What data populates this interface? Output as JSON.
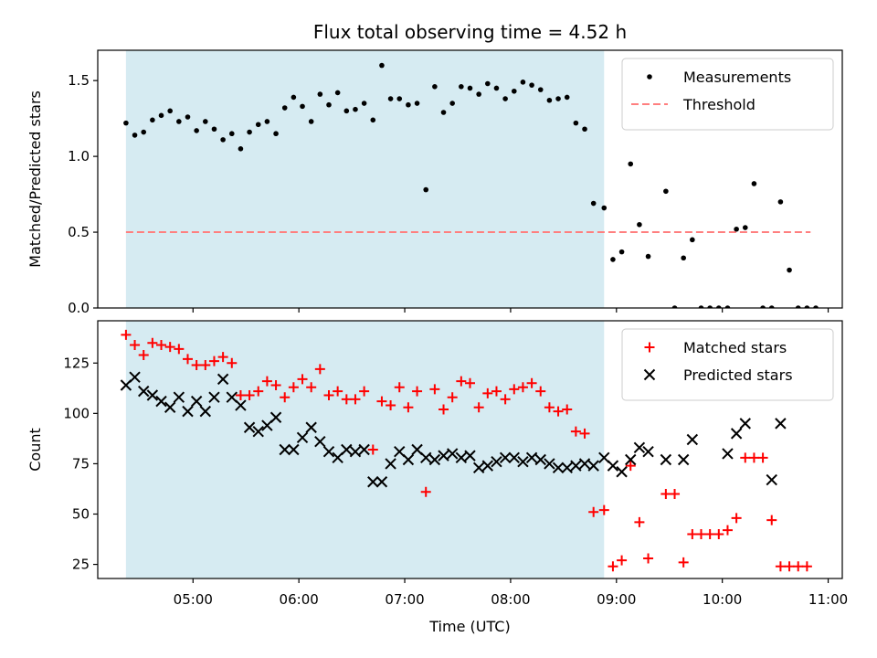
{
  "chart_data": {
    "title": "Flux total observing time = 4.52 h",
    "colors": {
      "measurement": "#000000",
      "threshold": "#ff7f7f",
      "matched": "#ff0000",
      "predicted": "#000000",
      "shade": "#add8e6"
    },
    "shade_span": [
      "04:22",
      "08:53"
    ],
    "x": {
      "label": "Time (UTC)",
      "lim": [
        "04:06",
        "11:08"
      ],
      "ticks": [
        "05:00",
        "06:00",
        "07:00",
        "08:00",
        "09:00",
        "10:00",
        "11:00"
      ]
    },
    "panels": [
      {
        "type": "scatter",
        "ylabel": "Matched/Predicted stars",
        "ylim": [
          0,
          1.7
        ],
        "yticks": [
          "0.0",
          "0.5",
          "1.0",
          "1.5"
        ],
        "legend": {
          "position": "top-right",
          "entries": [
            "Measurements",
            "Threshold"
          ]
        },
        "threshold": {
          "name": "Threshold",
          "value": 0.5,
          "x_range": [
            "04:22",
            "10:50"
          ]
        },
        "series": [
          {
            "name": "Measurements",
            "marker": "dot",
            "points": [
              [
                "04:22",
                1.22
              ],
              [
                "04:27",
                1.14
              ],
              [
                "04:32",
                1.16
              ],
              [
                "04:37",
                1.24
              ],
              [
                "04:42",
                1.27
              ],
              [
                "04:47",
                1.3
              ],
              [
                "04:52",
                1.23
              ],
              [
                "04:57",
                1.26
              ],
              [
                "05:02",
                1.17
              ],
              [
                "05:07",
                1.23
              ],
              [
                "05:12",
                1.18
              ],
              [
                "05:17",
                1.11
              ],
              [
                "05:22",
                1.15
              ],
              [
                "05:27",
                1.05
              ],
              [
                "05:32",
                1.16
              ],
              [
                "05:37",
                1.21
              ],
              [
                "05:42",
                1.23
              ],
              [
                "05:47",
                1.15
              ],
              [
                "05:52",
                1.32
              ],
              [
                "05:57",
                1.39
              ],
              [
                "06:02",
                1.33
              ],
              [
                "06:07",
                1.23
              ],
              [
                "06:12",
                1.41
              ],
              [
                "06:17",
                1.34
              ],
              [
                "06:22",
                1.42
              ],
              [
                "06:27",
                1.3
              ],
              [
                "06:32",
                1.31
              ],
              [
                "06:37",
                1.35
              ],
              [
                "06:42",
                1.24
              ],
              [
                "06:47",
                1.6
              ],
              [
                "06:52",
                1.38
              ],
              [
                "06:57",
                1.38
              ],
              [
                "07:02",
                1.34
              ],
              [
                "07:07",
                1.35
              ],
              [
                "07:12",
                0.78
              ],
              [
                "07:17",
                1.46
              ],
              [
                "07:22",
                1.29
              ],
              [
                "07:27",
                1.35
              ],
              [
                "07:32",
                1.46
              ],
              [
                "07:37",
                1.45
              ],
              [
                "07:42",
                1.41
              ],
              [
                "07:47",
                1.48
              ],
              [
                "07:52",
                1.45
              ],
              [
                "07:57",
                1.38
              ],
              [
                "08:02",
                1.43
              ],
              [
                "08:07",
                1.49
              ],
              [
                "08:12",
                1.47
              ],
              [
                "08:17",
                1.44
              ],
              [
                "08:22",
                1.37
              ],
              [
                "08:27",
                1.38
              ],
              [
                "08:32",
                1.39
              ],
              [
                "08:37",
                1.22
              ],
              [
                "08:42",
                1.18
              ],
              [
                "08:47",
                0.69
              ],
              [
                "08:53",
                0.66
              ],
              [
                "08:58",
                0.32
              ],
              [
                "09:03",
                0.37
              ],
              [
                "09:08",
                0.95
              ],
              [
                "09:13",
                0.55
              ],
              [
                "09:18",
                0.34
              ],
              [
                "09:28",
                0.77
              ],
              [
                "09:33",
                0.0
              ],
              [
                "09:38",
                0.33
              ],
              [
                "09:43",
                0.45
              ],
              [
                "09:48",
                0.0
              ],
              [
                "09:53",
                0.0
              ],
              [
                "09:58",
                0.0
              ],
              [
                "10:03",
                0.0
              ],
              [
                "10:08",
                0.52
              ],
              [
                "10:13",
                0.53
              ],
              [
                "10:18",
                0.82
              ],
              [
                "10:23",
                0.0
              ],
              [
                "10:28",
                0.0
              ],
              [
                "10:33",
                0.7
              ],
              [
                "10:38",
                0.25
              ],
              [
                "10:43",
                0.0
              ],
              [
                "10:48",
                0.0
              ],
              [
                "10:53",
                0.0
              ]
            ]
          }
        ]
      },
      {
        "type": "scatter",
        "ylabel": "Count",
        "ylim": [
          18,
          146
        ],
        "yticks": [
          "25",
          "50",
          "75",
          "100",
          "125"
        ],
        "legend": {
          "position": "top-right",
          "entries": [
            "Matched stars",
            "Predicted stars"
          ]
        },
        "series": [
          {
            "name": "Matched stars",
            "marker": "plus",
            "points": [
              [
                "04:22",
                139
              ],
              [
                "04:27",
                134
              ],
              [
                "04:32",
                129
              ],
              [
                "04:37",
                135
              ],
              [
                "04:42",
                134
              ],
              [
                "04:47",
                133
              ],
              [
                "04:52",
                132
              ],
              [
                "04:57",
                127
              ],
              [
                "05:02",
                124
              ],
              [
                "05:07",
                124
              ],
              [
                "05:12",
                126
              ],
              [
                "05:17",
                128
              ],
              [
                "05:22",
                125
              ],
              [
                "05:27",
                109
              ],
              [
                "05:32",
                109
              ],
              [
                "05:37",
                111
              ],
              [
                "05:42",
                116
              ],
              [
                "05:47",
                114
              ],
              [
                "05:52",
                108
              ],
              [
                "05:57",
                113
              ],
              [
                "06:02",
                117
              ],
              [
                "06:07",
                113
              ],
              [
                "06:12",
                122
              ],
              [
                "06:17",
                109
              ],
              [
                "06:22",
                111
              ],
              [
                "06:27",
                107
              ],
              [
                "06:32",
                107
              ],
              [
                "06:37",
                111
              ],
              [
                "06:42",
                82
              ],
              [
                "06:47",
                106
              ],
              [
                "06:52",
                104
              ],
              [
                "06:57",
                113
              ],
              [
                "07:02",
                103
              ],
              [
                "07:07",
                111
              ],
              [
                "07:12",
                61
              ],
              [
                "07:17",
                112
              ],
              [
                "07:22",
                102
              ],
              [
                "07:27",
                108
              ],
              [
                "07:32",
                116
              ],
              [
                "07:37",
                115
              ],
              [
                "07:42",
                103
              ],
              [
                "07:47",
                110
              ],
              [
                "07:52",
                111
              ],
              [
                "07:57",
                107
              ],
              [
                "08:02",
                112
              ],
              [
                "08:07",
                113
              ],
              [
                "08:12",
                115
              ],
              [
                "08:17",
                111
              ],
              [
                "08:22",
                103
              ],
              [
                "08:27",
                101
              ],
              [
                "08:32",
                102
              ],
              [
                "08:37",
                91
              ],
              [
                "08:42",
                90
              ],
              [
                "08:47",
                51
              ],
              [
                "08:53",
                52
              ],
              [
                "08:58",
                24
              ],
              [
                "09:03",
                27
              ],
              [
                "09:08",
                74
              ],
              [
                "09:13",
                46
              ],
              [
                "09:18",
                28
              ],
              [
                "09:28",
                60
              ],
              [
                "09:33",
                60
              ],
              [
                "09:38",
                26
              ],
              [
                "09:43",
                40
              ],
              [
                "09:48",
                40
              ],
              [
                "09:53",
                40
              ],
              [
                "09:58",
                40
              ],
              [
                "10:03",
                42
              ],
              [
                "10:08",
                48
              ],
              [
                "10:13",
                78
              ],
              [
                "10:18",
                78
              ],
              [
                "10:23",
                78
              ],
              [
                "10:28",
                47
              ],
              [
                "10:33",
                24
              ],
              [
                "10:38",
                24
              ],
              [
                "10:43",
                24
              ],
              [
                "10:48",
                24
              ]
            ]
          },
          {
            "name": "Predicted stars",
            "marker": "x",
            "points": [
              [
                "04:22",
                114
              ],
              [
                "04:27",
                118
              ],
              [
                "04:32",
                111
              ],
              [
                "04:37",
                109
              ],
              [
                "04:42",
                106
              ],
              [
                "04:47",
                103
              ],
              [
                "04:52",
                108
              ],
              [
                "04:57",
                101
              ],
              [
                "05:02",
                106
              ],
              [
                "05:07",
                101
              ],
              [
                "05:12",
                108
              ],
              [
                "05:17",
                117
              ],
              [
                "05:22",
                108
              ],
              [
                "05:27",
                104
              ],
              [
                "05:32",
                93
              ],
              [
                "05:37",
                91
              ],
              [
                "05:42",
                94
              ],
              [
                "05:47",
                98
              ],
              [
                "05:52",
                82
              ],
              [
                "05:57",
                82
              ],
              [
                "06:02",
                88
              ],
              [
                "06:07",
                93
              ],
              [
                "06:12",
                86
              ],
              [
                "06:17",
                81
              ],
              [
                "06:22",
                78
              ],
              [
                "06:27",
                82
              ],
              [
                "06:32",
                81
              ],
              [
                "06:37",
                82
              ],
              [
                "06:42",
                66
              ],
              [
                "06:47",
                66
              ],
              [
                "06:52",
                75
              ],
              [
                "06:57",
                81
              ],
              [
                "07:02",
                77
              ],
              [
                "07:07",
                82
              ],
              [
                "07:12",
                78
              ],
              [
                "07:17",
                77
              ],
              [
                "07:22",
                79
              ],
              [
                "07:27",
                80
              ],
              [
                "07:32",
                78
              ],
              [
                "07:37",
                79
              ],
              [
                "07:42",
                73
              ],
              [
                "07:47",
                74
              ],
              [
                "07:52",
                76
              ],
              [
                "07:57",
                78
              ],
              [
                "08:02",
                78
              ],
              [
                "08:07",
                76
              ],
              [
                "08:12",
                78
              ],
              [
                "08:17",
                77
              ],
              [
                "08:22",
                75
              ],
              [
                "08:27",
                73
              ],
              [
                "08:32",
                73
              ],
              [
                "08:37",
                74
              ],
              [
                "08:42",
                75
              ],
              [
                "08:47",
                74
              ],
              [
                "08:53",
                78
              ],
              [
                "08:58",
                74
              ],
              [
                "09:03",
                71
              ],
              [
                "09:08",
                77
              ],
              [
                "09:13",
                83
              ],
              [
                "09:18",
                81
              ],
              [
                "09:28",
                77
              ],
              [
                "09:38",
                77
              ],
              [
                "09:43",
                87
              ],
              [
                "10:03",
                80
              ],
              [
                "10:08",
                90
              ],
              [
                "10:13",
                95
              ],
              [
                "10:28",
                67
              ],
              [
                "10:33",
                95
              ]
            ]
          }
        ]
      }
    ]
  }
}
